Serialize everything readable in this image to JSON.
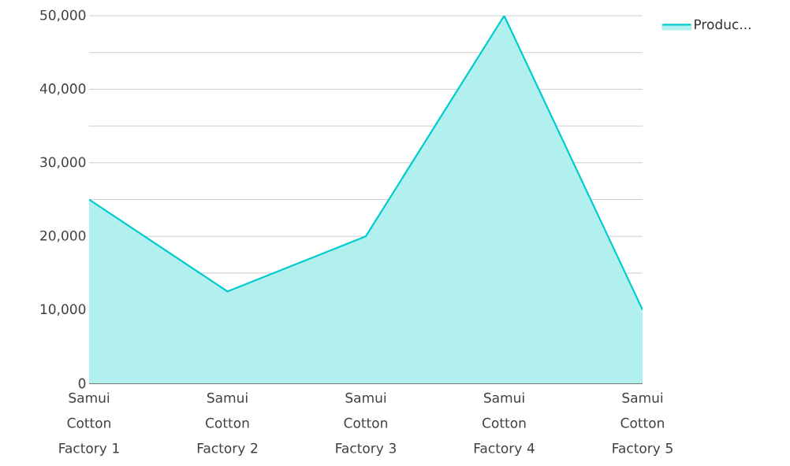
{
  "chart_data": {
    "type": "area",
    "categories": [
      "Samui Cotton Factory 1",
      "Samui Cotton Factory 2",
      "Samui Cotton Factory 3",
      "Samui Cotton Factory 4",
      "Samui Cotton Factory 5"
    ],
    "series": [
      {
        "name": "Produc...",
        "color": "#00cccc",
        "values": [
          25000,
          12500,
          20000,
          50000,
          10000
        ]
      }
    ],
    "ylim": [
      0,
      50000
    ],
    "yticks": [
      0,
      {
        "value": 5000,
        "label": null
      },
      {
        "value": 10000,
        "label": "10,000"
      },
      {
        "value": 15000,
        "label": null
      },
      {
        "value": 20000,
        "label": "20,000"
      },
      {
        "value": 25000,
        "label": null
      },
      {
        "value": 30000,
        "label": "30,000"
      },
      {
        "value": 35000,
        "label": null
      },
      {
        "value": 40000,
        "label": "40,000"
      },
      {
        "value": 45000,
        "label": null
      },
      {
        "value": 50000,
        "label": "50,000"
      }
    ],
    "grid": "y",
    "legend": "top right"
  }
}
